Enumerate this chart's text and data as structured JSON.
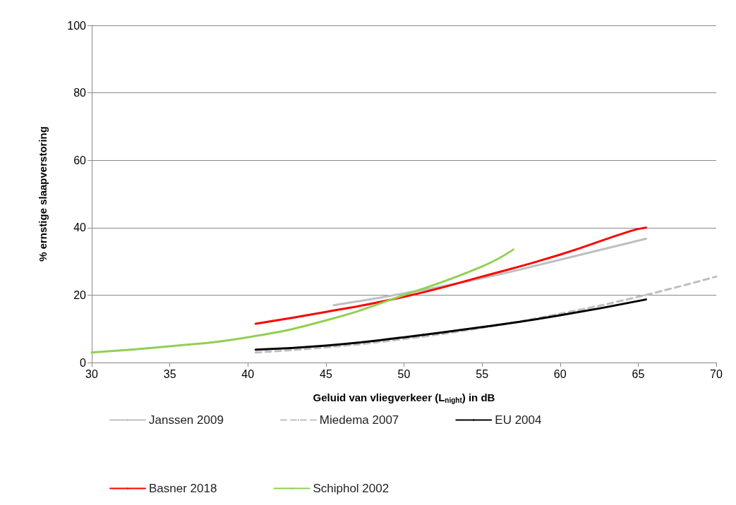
{
  "chart_data": {
    "type": "line",
    "xlabel": "Geluid van vliegverkeer (L$_{night}$) in dB",
    "ylabel": "% ernstige slaapverstoring",
    "xlim": [
      30,
      70
    ],
    "xticks": [
      30,
      35,
      40,
      45,
      50,
      55,
      60,
      65,
      70
    ],
    "ylim": [
      0,
      100
    ],
    "yticks": [
      0,
      20,
      40,
      60,
      80,
      100
    ],
    "grid": "y",
    "legend": "bottom",
    "marker": "none",
    "line_style": "solid",
    "series": [
      {
        "name": "Janssen 2009",
        "color": "#bfbfbf",
        "x": [
          45.5,
          50,
          55,
          60,
          65.5
        ],
        "values": [
          17,
          20.5,
          25,
          30.5,
          36.7
        ]
      },
      {
        "name": "Miedema 2007",
        "color": "#bfbfbf",
        "line_style": "dashed",
        "x": [
          40.5,
          45,
          50,
          55,
          60,
          65,
          70
        ],
        "values": [
          3,
          4.5,
          7,
          10.3,
          14.5,
          19.5,
          25.5
        ]
      },
      {
        "name": "EU 2004",
        "color": "#000000",
        "x": [
          40.5,
          45,
          50,
          55,
          60,
          65.5
        ],
        "values": [
          3.8,
          5,
          7.5,
          10.5,
          14,
          18.7
        ]
      },
      {
        "name": "Basner 2018",
        "color": "#ff0000",
        "x": [
          40.5,
          45,
          50,
          55,
          60,
          64.5,
          65.5
        ],
        "values": [
          11.5,
          15,
          19.5,
          25.5,
          32,
          39,
          40
        ]
      },
      {
        "name": "Schiphol 2002",
        "color": "#92d050",
        "x": [
          30,
          35,
          40,
          45,
          50,
          55,
          57
        ],
        "values": [
          3,
          4.8,
          7.5,
          12.5,
          20,
          28.5,
          33.5
        ]
      }
    ]
  }
}
